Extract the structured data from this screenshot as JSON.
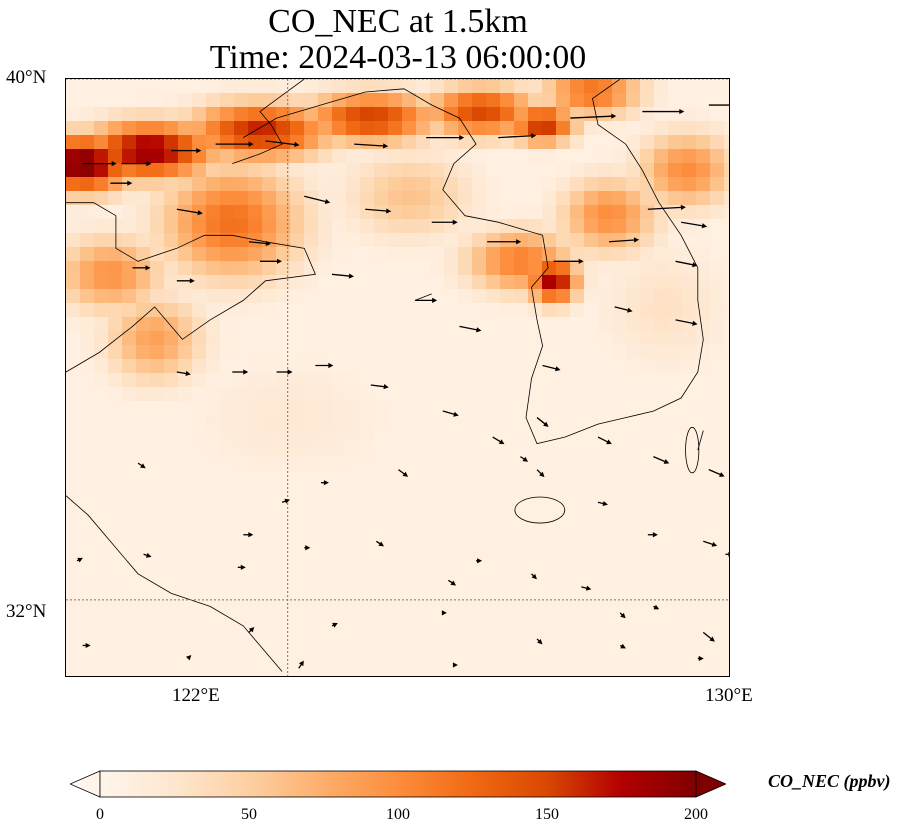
{
  "title": {
    "line1": "CO_NEC at 1.5km",
    "line2": "Time: 2024-03-13 06:00:00"
  },
  "map": {
    "lon_range": [
      118,
      130
    ],
    "lat_range": [
      30.8,
      40
    ],
    "graticule": {
      "lon": [
        122,
        130
      ],
      "lat": [
        32,
        40
      ]
    },
    "lat_labels": [
      {
        "lat": 40,
        "text": "40°N"
      },
      {
        "lat": 32,
        "text": "32°N"
      }
    ],
    "lon_labels": [
      {
        "lon": 122,
        "text": "122°E"
      },
      {
        "lon": 130,
        "text": "130°E"
      }
    ],
    "field_variable": "CO_NEC",
    "plumes": [
      {
        "lon": 118.3,
        "lat": 38.7,
        "value": 205,
        "sx": 0.9,
        "sy": 0.45
      },
      {
        "lon": 119.5,
        "lat": 38.9,
        "value": 190,
        "sx": 1.2,
        "sy": 0.45
      },
      {
        "lon": 121.5,
        "lat": 39.2,
        "value": 165,
        "sx": 1.3,
        "sy": 0.45
      },
      {
        "lon": 123.5,
        "lat": 39.4,
        "value": 155,
        "sx": 1.2,
        "sy": 0.4
      },
      {
        "lon": 125.5,
        "lat": 39.5,
        "value": 150,
        "sx": 1.0,
        "sy": 0.4
      },
      {
        "lon": 126.6,
        "lat": 39.3,
        "value": 165,
        "sx": 0.6,
        "sy": 0.3
      },
      {
        "lon": 127.5,
        "lat": 39.8,
        "value": 120,
        "sx": 0.9,
        "sy": 0.4
      },
      {
        "lon": 121.0,
        "lat": 37.8,
        "value": 120,
        "sx": 1.3,
        "sy": 0.9
      },
      {
        "lon": 118.8,
        "lat": 37.0,
        "value": 95,
        "sx": 1.0,
        "sy": 0.6
      },
      {
        "lon": 119.6,
        "lat": 36.0,
        "value": 85,
        "sx": 0.9,
        "sy": 0.7
      },
      {
        "lon": 126.8,
        "lat": 36.9,
        "value": 185,
        "sx": 0.45,
        "sy": 0.35
      },
      {
        "lon": 126.2,
        "lat": 37.2,
        "value": 110,
        "sx": 1.0,
        "sy": 0.5
      },
      {
        "lon": 127.8,
        "lat": 37.9,
        "value": 100,
        "sx": 0.9,
        "sy": 0.6
      },
      {
        "lon": 129.2,
        "lat": 38.6,
        "value": 100,
        "sx": 0.9,
        "sy": 0.6
      },
      {
        "lon": 124.2,
        "lat": 38.2,
        "value": 60,
        "sx": 1.2,
        "sy": 0.7
      },
      {
        "lon": 128.8,
        "lat": 36.5,
        "value": 30,
        "sx": 1.2,
        "sy": 1.0
      },
      {
        "lon": 122.0,
        "lat": 34.8,
        "value": 20,
        "sx": 2.0,
        "sy": 1.0
      }
    ],
    "coast_polylines": [
      [
        [
          118.0,
          35.5
        ],
        [
          118.6,
          35.8
        ],
        [
          119.2,
          36.2
        ],
        [
          119.6,
          36.5
        ],
        [
          120.1,
          36.0
        ],
        [
          120.6,
          36.3
        ],
        [
          121.2,
          36.6
        ],
        [
          121.6,
          36.9
        ],
        [
          122.5,
          37.0
        ],
        [
          122.3,
          37.4
        ],
        [
          121.6,
          37.5
        ],
        [
          121.0,
          37.6
        ],
        [
          120.5,
          37.6
        ],
        [
          120.0,
          37.4
        ],
        [
          119.3,
          37.2
        ],
        [
          118.9,
          37.4
        ],
        [
          118.9,
          37.9
        ],
        [
          118.5,
          38.1
        ],
        [
          118.0,
          38.1
        ]
      ],
      [
        [
          121.0,
          38.7
        ],
        [
          121.5,
          38.85
        ],
        [
          121.9,
          39.0
        ],
        [
          121.7,
          39.3
        ],
        [
          121.5,
          39.5
        ],
        [
          121.9,
          39.75
        ],
        [
          122.3,
          40.0
        ]
      ],
      [
        [
          121.2,
          39.1
        ],
        [
          121.8,
          39.4
        ],
        [
          122.6,
          39.6
        ],
        [
          123.4,
          39.8
        ],
        [
          124.1,
          39.85
        ],
        [
          124.6,
          39.6
        ],
        [
          125.1,
          39.4
        ],
        [
          125.4,
          39.0
        ],
        [
          125.0,
          38.7
        ],
        [
          124.8,
          38.3
        ],
        [
          125.2,
          37.9
        ],
        [
          125.8,
          37.8
        ],
        [
          126.2,
          37.7
        ],
        [
          126.6,
          37.6
        ],
        [
          126.7,
          37.1
        ],
        [
          126.4,
          36.8
        ],
        [
          126.5,
          36.3
        ],
        [
          126.6,
          35.9
        ],
        [
          126.4,
          35.4
        ],
        [
          126.3,
          34.8
        ],
        [
          126.5,
          34.4
        ],
        [
          127.0,
          34.5
        ],
        [
          127.6,
          34.7
        ],
        [
          128.1,
          34.8
        ],
        [
          128.6,
          34.9
        ],
        [
          129.1,
          35.1
        ],
        [
          129.4,
          35.5
        ],
        [
          129.5,
          36.0
        ],
        [
          129.4,
          36.6
        ],
        [
          129.4,
          37.1
        ],
        [
          129.1,
          37.6
        ],
        [
          128.7,
          38.1
        ],
        [
          128.4,
          38.6
        ],
        [
          128.1,
          39.0
        ],
        [
          127.6,
          39.3
        ],
        [
          127.5,
          39.7
        ],
        [
          128.0,
          40.0
        ]
      ],
      [
        [
          124.3,
          36.6
        ],
        [
          124.6,
          36.7
        ]
      ],
      [
        [
          118.0,
          33.6
        ],
        [
          118.4,
          33.3
        ],
        [
          118.8,
          32.9
        ],
        [
          119.3,
          32.4
        ],
        [
          119.9,
          32.1
        ],
        [
          120.6,
          31.9
        ],
        [
          121.2,
          31.6
        ],
        [
          121.6,
          31.2
        ],
        [
          121.9,
          30.9
        ]
      ],
      [
        [
          129.4,
          34.3
        ],
        [
          129.5,
          34.6
        ]
      ]
    ],
    "islands": [
      {
        "lon": 126.55,
        "lat": 33.38,
        "rx": 0.45,
        "ry": 0.2
      },
      {
        "lon": 129.3,
        "lat": 34.3,
        "rx": 0.12,
        "ry": 0.35
      }
    ],
    "wind_vectors": [
      [
        118.3,
        38.7,
        0.8,
        0.0
      ],
      [
        119.0,
        38.7,
        0.7,
        0.0
      ],
      [
        119.9,
        38.9,
        0.7,
        0.0
      ],
      [
        120.7,
        39.0,
        0.9,
        0.0
      ],
      [
        121.6,
        39.05,
        0.8,
        -0.1
      ],
      [
        123.2,
        39.0,
        0.8,
        -0.05
      ],
      [
        124.5,
        39.1,
        0.9,
        0.0
      ],
      [
        125.8,
        39.1,
        0.9,
        0.05
      ],
      [
        127.1,
        39.4,
        1.1,
        0.05
      ],
      [
        128.4,
        39.5,
        1.0,
        0.0
      ],
      [
        129.6,
        39.6,
        1.0,
        0.0
      ],
      [
        118.8,
        38.4,
        0.5,
        0.0
      ],
      [
        120.0,
        38.0,
        0.6,
        -0.1
      ],
      [
        121.3,
        37.5,
        0.5,
        -0.05
      ],
      [
        122.3,
        38.2,
        0.6,
        -0.15
      ],
      [
        123.4,
        38.0,
        0.6,
        -0.05
      ],
      [
        124.6,
        37.8,
        0.6,
        0.0
      ],
      [
        125.6,
        37.5,
        0.8,
        0.0
      ],
      [
        126.8,
        37.2,
        0.7,
        0.0
      ],
      [
        127.8,
        37.5,
        0.7,
        0.05
      ],
      [
        128.5,
        38.0,
        0.9,
        0.05
      ],
      [
        129.1,
        37.8,
        0.6,
        -0.1
      ],
      [
        129.0,
        37.2,
        0.5,
        -0.1
      ],
      [
        119.2,
        37.1,
        0.4,
        0.0
      ],
      [
        120.0,
        36.9,
        0.4,
        0.0
      ],
      [
        121.5,
        37.2,
        0.5,
        0.0
      ],
      [
        122.8,
        37.0,
        0.5,
        -0.05
      ],
      [
        124.3,
        36.6,
        0.5,
        0.0
      ],
      [
        125.1,
        36.2,
        0.5,
        -0.1
      ],
      [
        126.6,
        35.6,
        0.4,
        -0.1
      ],
      [
        127.9,
        36.5,
        0.4,
        -0.1
      ],
      [
        129.0,
        36.3,
        0.5,
        -0.1
      ],
      [
        120.0,
        35.5,
        0.3,
        -0.05
      ],
      [
        121.0,
        35.5,
        0.35,
        0.0
      ],
      [
        121.8,
        35.5,
        0.35,
        0.0
      ],
      [
        122.5,
        35.6,
        0.4,
        0.0
      ],
      [
        123.5,
        35.3,
        0.4,
        -0.05
      ],
      [
        124.8,
        34.9,
        0.35,
        -0.1
      ],
      [
        125.7,
        34.5,
        0.25,
        -0.15
      ],
      [
        126.5,
        34.8,
        0.25,
        -0.2
      ],
      [
        127.6,
        34.5,
        0.3,
        -0.15
      ],
      [
        128.6,
        34.2,
        0.35,
        -0.15
      ],
      [
        129.6,
        34.0,
        0.35,
        -0.15
      ],
      [
        130.0,
        34.3,
        0.3,
        -0.1
      ],
      [
        119.3,
        34.1,
        0.15,
        -0.1
      ],
      [
        121.2,
        33.0,
        0.2,
        0.0
      ],
      [
        121.9,
        33.5,
        0.15,
        0.05
      ],
      [
        122.6,
        33.8,
        0.15,
        0.0
      ],
      [
        124.0,
        34.0,
        0.2,
        -0.15
      ],
      [
        126.2,
        34.2,
        0.15,
        -0.1
      ],
      [
        126.5,
        34.0,
        0.15,
        -0.15
      ],
      [
        127.6,
        33.5,
        0.2,
        -0.05
      ],
      [
        128.5,
        33.0,
        0.2,
        0.0
      ],
      [
        129.5,
        32.9,
        0.3,
        -0.1
      ],
      [
        129.9,
        32.7,
        0.15,
        0.0
      ],
      [
        118.2,
        32.6,
        0.1,
        0.05
      ],
      [
        119.4,
        32.7,
        0.15,
        -0.05
      ],
      [
        121.1,
        32.5,
        0.15,
        0.0
      ],
      [
        122.3,
        32.8,
        0.1,
        0.0
      ],
      [
        123.6,
        32.9,
        0.15,
        -0.1
      ],
      [
        124.9,
        32.3,
        0.15,
        -0.1
      ],
      [
        125.4,
        32.6,
        0.1,
        0.0
      ],
      [
        126.4,
        32.4,
        0.1,
        -0.1
      ],
      [
        127.3,
        32.2,
        0.2,
        -0.05
      ],
      [
        128.0,
        31.8,
        0.1,
        -0.1
      ],
      [
        128.6,
        31.9,
        0.1,
        -0.05
      ],
      [
        129.5,
        31.5,
        0.25,
        -0.2
      ],
      [
        130.0,
        31.8,
        0.2,
        0.15
      ],
      [
        121.3,
        31.5,
        0.1,
        0.1
      ],
      [
        122.8,
        31.6,
        0.1,
        0.05
      ],
      [
        124.8,
        31.8,
        0.05,
        0.0
      ],
      [
        126.5,
        31.4,
        0.1,
        -0.1
      ],
      [
        128.0,
        31.3,
        0.1,
        -0.05
      ],
      [
        129.4,
        31.1,
        0.1,
        0.0
      ],
      [
        118.3,
        31.3,
        0.15,
        0.0
      ],
      [
        120.2,
        31.1,
        0.05,
        0.05
      ],
      [
        122.2,
        30.95,
        0.1,
        0.15
      ],
      [
        125.0,
        31.0,
        0.05,
        0.0
      ]
    ]
  },
  "colorbar": {
    "label": "CO_NEC (ppbv)",
    "min": 0,
    "max": 200,
    "ticks": [
      {
        "value": 0,
        "text": "0"
      },
      {
        "value": 50,
        "text": "50"
      },
      {
        "value": 100,
        "text": "100"
      },
      {
        "value": 150,
        "text": "150"
      },
      {
        "value": 200,
        "text": "200"
      }
    ],
    "colors": [
      "#fff5eb",
      "#fee6ce",
      "#fdd0a2",
      "#fdae6b",
      "#fd8d3c",
      "#f16913",
      "#d94801",
      "#b30000",
      "#7f0000"
    ]
  }
}
